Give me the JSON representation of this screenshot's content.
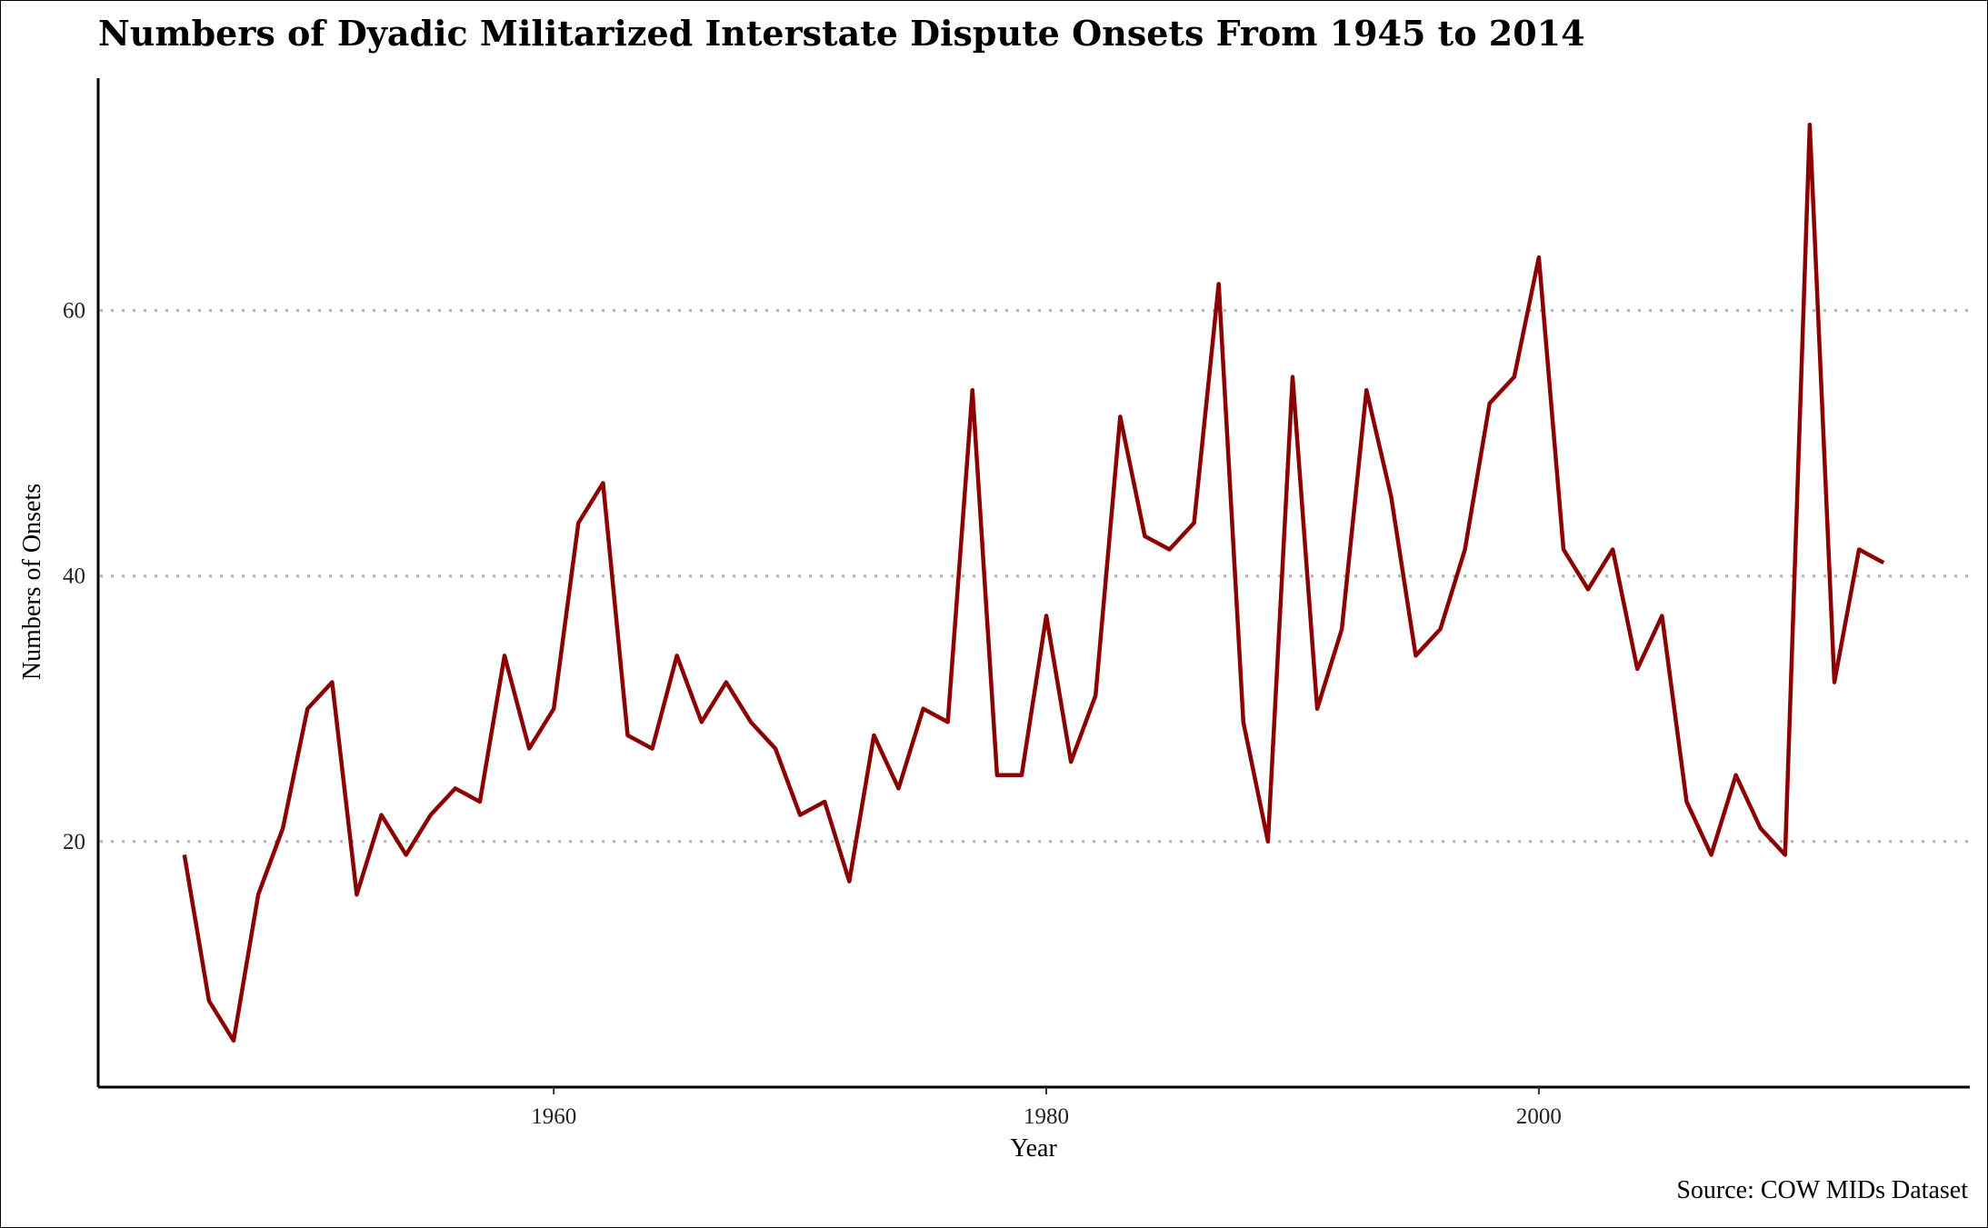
{
  "chart_data": {
    "type": "line",
    "title": "Numbers of Dyadic Militarized Interstate Dispute Onsets From 1945 to 2014",
    "xlabel": "Year",
    "ylabel": "Numbers of Onsets",
    "caption": "Source: COW MIDs Dataset",
    "xlim": [
      1941.5,
      2017.5
    ],
    "ylim": [
      1.5,
      77.5
    ],
    "x_ticks": [
      1960,
      1980,
      2000
    ],
    "y_ticks": [
      20,
      40,
      60
    ],
    "grid": {
      "y_major": true,
      "x_major": false,
      "style": "dotted"
    },
    "line_color": "#8B0000",
    "x": [
      1945,
      1946,
      1947,
      1948,
      1949,
      1950,
      1951,
      1952,
      1953,
      1954,
      1955,
      1956,
      1957,
      1958,
      1959,
      1960,
      1961,
      1962,
      1963,
      1964,
      1965,
      1966,
      1967,
      1968,
      1969,
      1970,
      1971,
      1972,
      1973,
      1974,
      1975,
      1976,
      1977,
      1978,
      1979,
      1980,
      1981,
      1982,
      1983,
      1984,
      1985,
      1986,
      1987,
      1988,
      1989,
      1990,
      1991,
      1992,
      1993,
      1994,
      1995,
      1996,
      1997,
      1998,
      1999,
      2000,
      2001,
      2002,
      2003,
      2004,
      2005,
      2006,
      2007,
      2008,
      2009,
      2010,
      2011,
      2012,
      2013,
      2014
    ],
    "series": [
      {
        "values": [
          19,
          8,
          5,
          16,
          21,
          30,
          32,
          16,
          22,
          19,
          22,
          24,
          23,
          34,
          27,
          30,
          44,
          47,
          28,
          27,
          34,
          29,
          32,
          29,
          27,
          22,
          23,
          17,
          28,
          24,
          30,
          29,
          54,
          25,
          25,
          37,
          26,
          31,
          52,
          43,
          42,
          44,
          62,
          29,
          20,
          55,
          30,
          36,
          54,
          46,
          34,
          36,
          42,
          53,
          55,
          64,
          42,
          39,
          42,
          33,
          37,
          23,
          19,
          25,
          21,
          19,
          74,
          32,
          42,
          41
        ]
      }
    ]
  }
}
